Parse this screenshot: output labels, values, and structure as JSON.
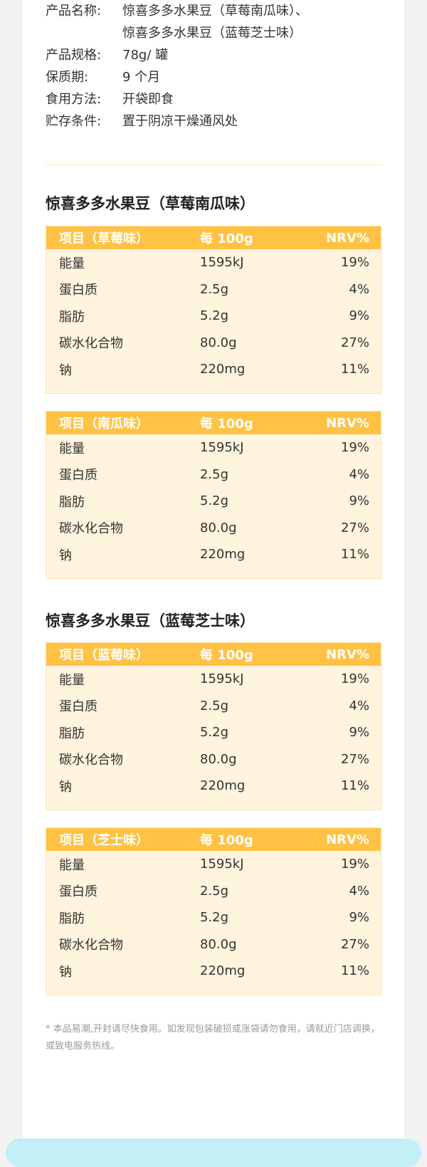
{
  "info": {
    "rows": [
      {
        "key": "产品名称:",
        "value": "惊喜多多水果豆（草莓南瓜味）、"
      },
      {
        "key": "",
        "value": "惊喜多多水果豆（蓝莓芝士味）"
      },
      {
        "key": "产品规格:",
        "value": "78g/ 罐"
      },
      {
        "key": "保质期:",
        "value": "9 个月"
      },
      {
        "key": "食用方法:",
        "value": "开袋即食"
      },
      {
        "key": "贮存条件:",
        "value": "置于阴凉干燥通风处"
      }
    ]
  },
  "sections": [
    {
      "title": "惊喜多多水果豆（草莓南瓜味）"
    },
    {
      "title": "惊喜多多水果豆（蓝莓芝士味）"
    }
  ],
  "tables": [
    {
      "header": [
        "项目（草莓味）",
        "每 100g",
        "NRV%"
      ],
      "rows": [
        [
          "能量",
          "1595kJ",
          "19%"
        ],
        [
          "蛋白质",
          "2.5g",
          "4%"
        ],
        [
          "脂肪",
          "5.2g",
          "9%"
        ],
        [
          "碳水化合物",
          "80.0g",
          "27%"
        ],
        [
          "钠",
          "220mg",
          "11%"
        ]
      ]
    },
    {
      "header": [
        "项目（南瓜味）",
        "每 100g",
        "NRV%"
      ],
      "rows": [
        [
          "能量",
          "1595kJ",
          "19%"
        ],
        [
          "蛋白质",
          "2.5g",
          "4%"
        ],
        [
          "脂肪",
          "5.2g",
          "9%"
        ],
        [
          "碳水化合物",
          "80.0g",
          "27%"
        ],
        [
          "钠",
          "220mg",
          "11%"
        ]
      ]
    },
    {
      "header": [
        "项目（蓝莓味）",
        "每 100g",
        "NRV%"
      ],
      "rows": [
        [
          "能量",
          "1595kJ",
          "19%"
        ],
        [
          "蛋白质",
          "2.5g",
          "4%"
        ],
        [
          "脂肪",
          "5.2g",
          "9%"
        ],
        [
          "碳水化合物",
          "80.0g",
          "27%"
        ],
        [
          "钠",
          "220mg",
          "11%"
        ]
      ]
    },
    {
      "header": [
        "项目（芝士味）",
        "每 100g",
        "NRV%"
      ],
      "rows": [
        [
          "能量",
          "1595kJ",
          "19%"
        ],
        [
          "蛋白质",
          "2.5g",
          "4%"
        ],
        [
          "脂肪",
          "5.2g",
          "9%"
        ],
        [
          "碳水化合物",
          "80.0g",
          "27%"
        ],
        [
          "钠",
          "220mg",
          "11%"
        ]
      ]
    }
  ],
  "note": "* 本品易潮,开封请尽快食用。如发现包装破损或涨袋请勿食用，请就近门店调换，或致电服务热线。",
  "colors": {
    "header": "#ffc245",
    "body": "#fff4dd",
    "bottom_panel": "#c3eff6"
  }
}
